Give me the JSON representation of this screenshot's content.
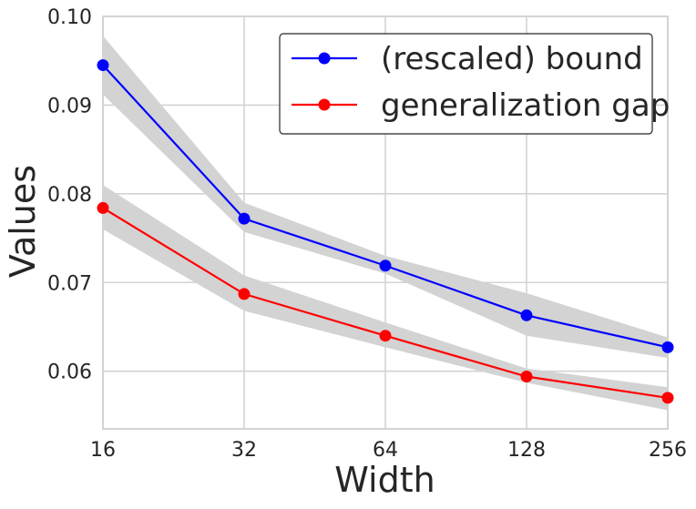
{
  "chart_data": {
    "type": "line",
    "title": "",
    "xlabel": "Width",
    "ylabel": "Values",
    "x": [
      16,
      32,
      64,
      128,
      256
    ],
    "x_scale": "log2",
    "xticks": [
      "16",
      "32",
      "64",
      "128",
      "256"
    ],
    "ylim": [
      0.0535,
      0.1
    ],
    "yticks": [
      "0.06",
      "0.07",
      "0.08",
      "0.09",
      "0.10"
    ],
    "ytick_values": [
      0.06,
      0.07,
      0.08,
      0.09,
      0.1
    ],
    "grid": true,
    "legend_position": "top-right",
    "series": [
      {
        "name": "(rescaled) bound",
        "color": "#0000ff",
        "values": [
          0.0945,
          0.0772,
          0.0719,
          0.0663,
          0.0627
        ],
        "band_lower": [
          0.0912,
          0.0757,
          0.071,
          0.064,
          0.0615
        ],
        "band_upper": [
          0.0978,
          0.079,
          0.073,
          0.0688,
          0.0638
        ]
      },
      {
        "name": "generalization gap",
        "color": "#ff0000",
        "values": [
          0.0784,
          0.0687,
          0.064,
          0.0594,
          0.057
        ],
        "band_lower": [
          0.076,
          0.0668,
          0.0627,
          0.0587,
          0.0556
        ],
        "band_upper": [
          0.081,
          0.0708,
          0.0655,
          0.0603,
          0.0582
        ]
      }
    ],
    "band_color": "#d3d3d3"
  }
}
